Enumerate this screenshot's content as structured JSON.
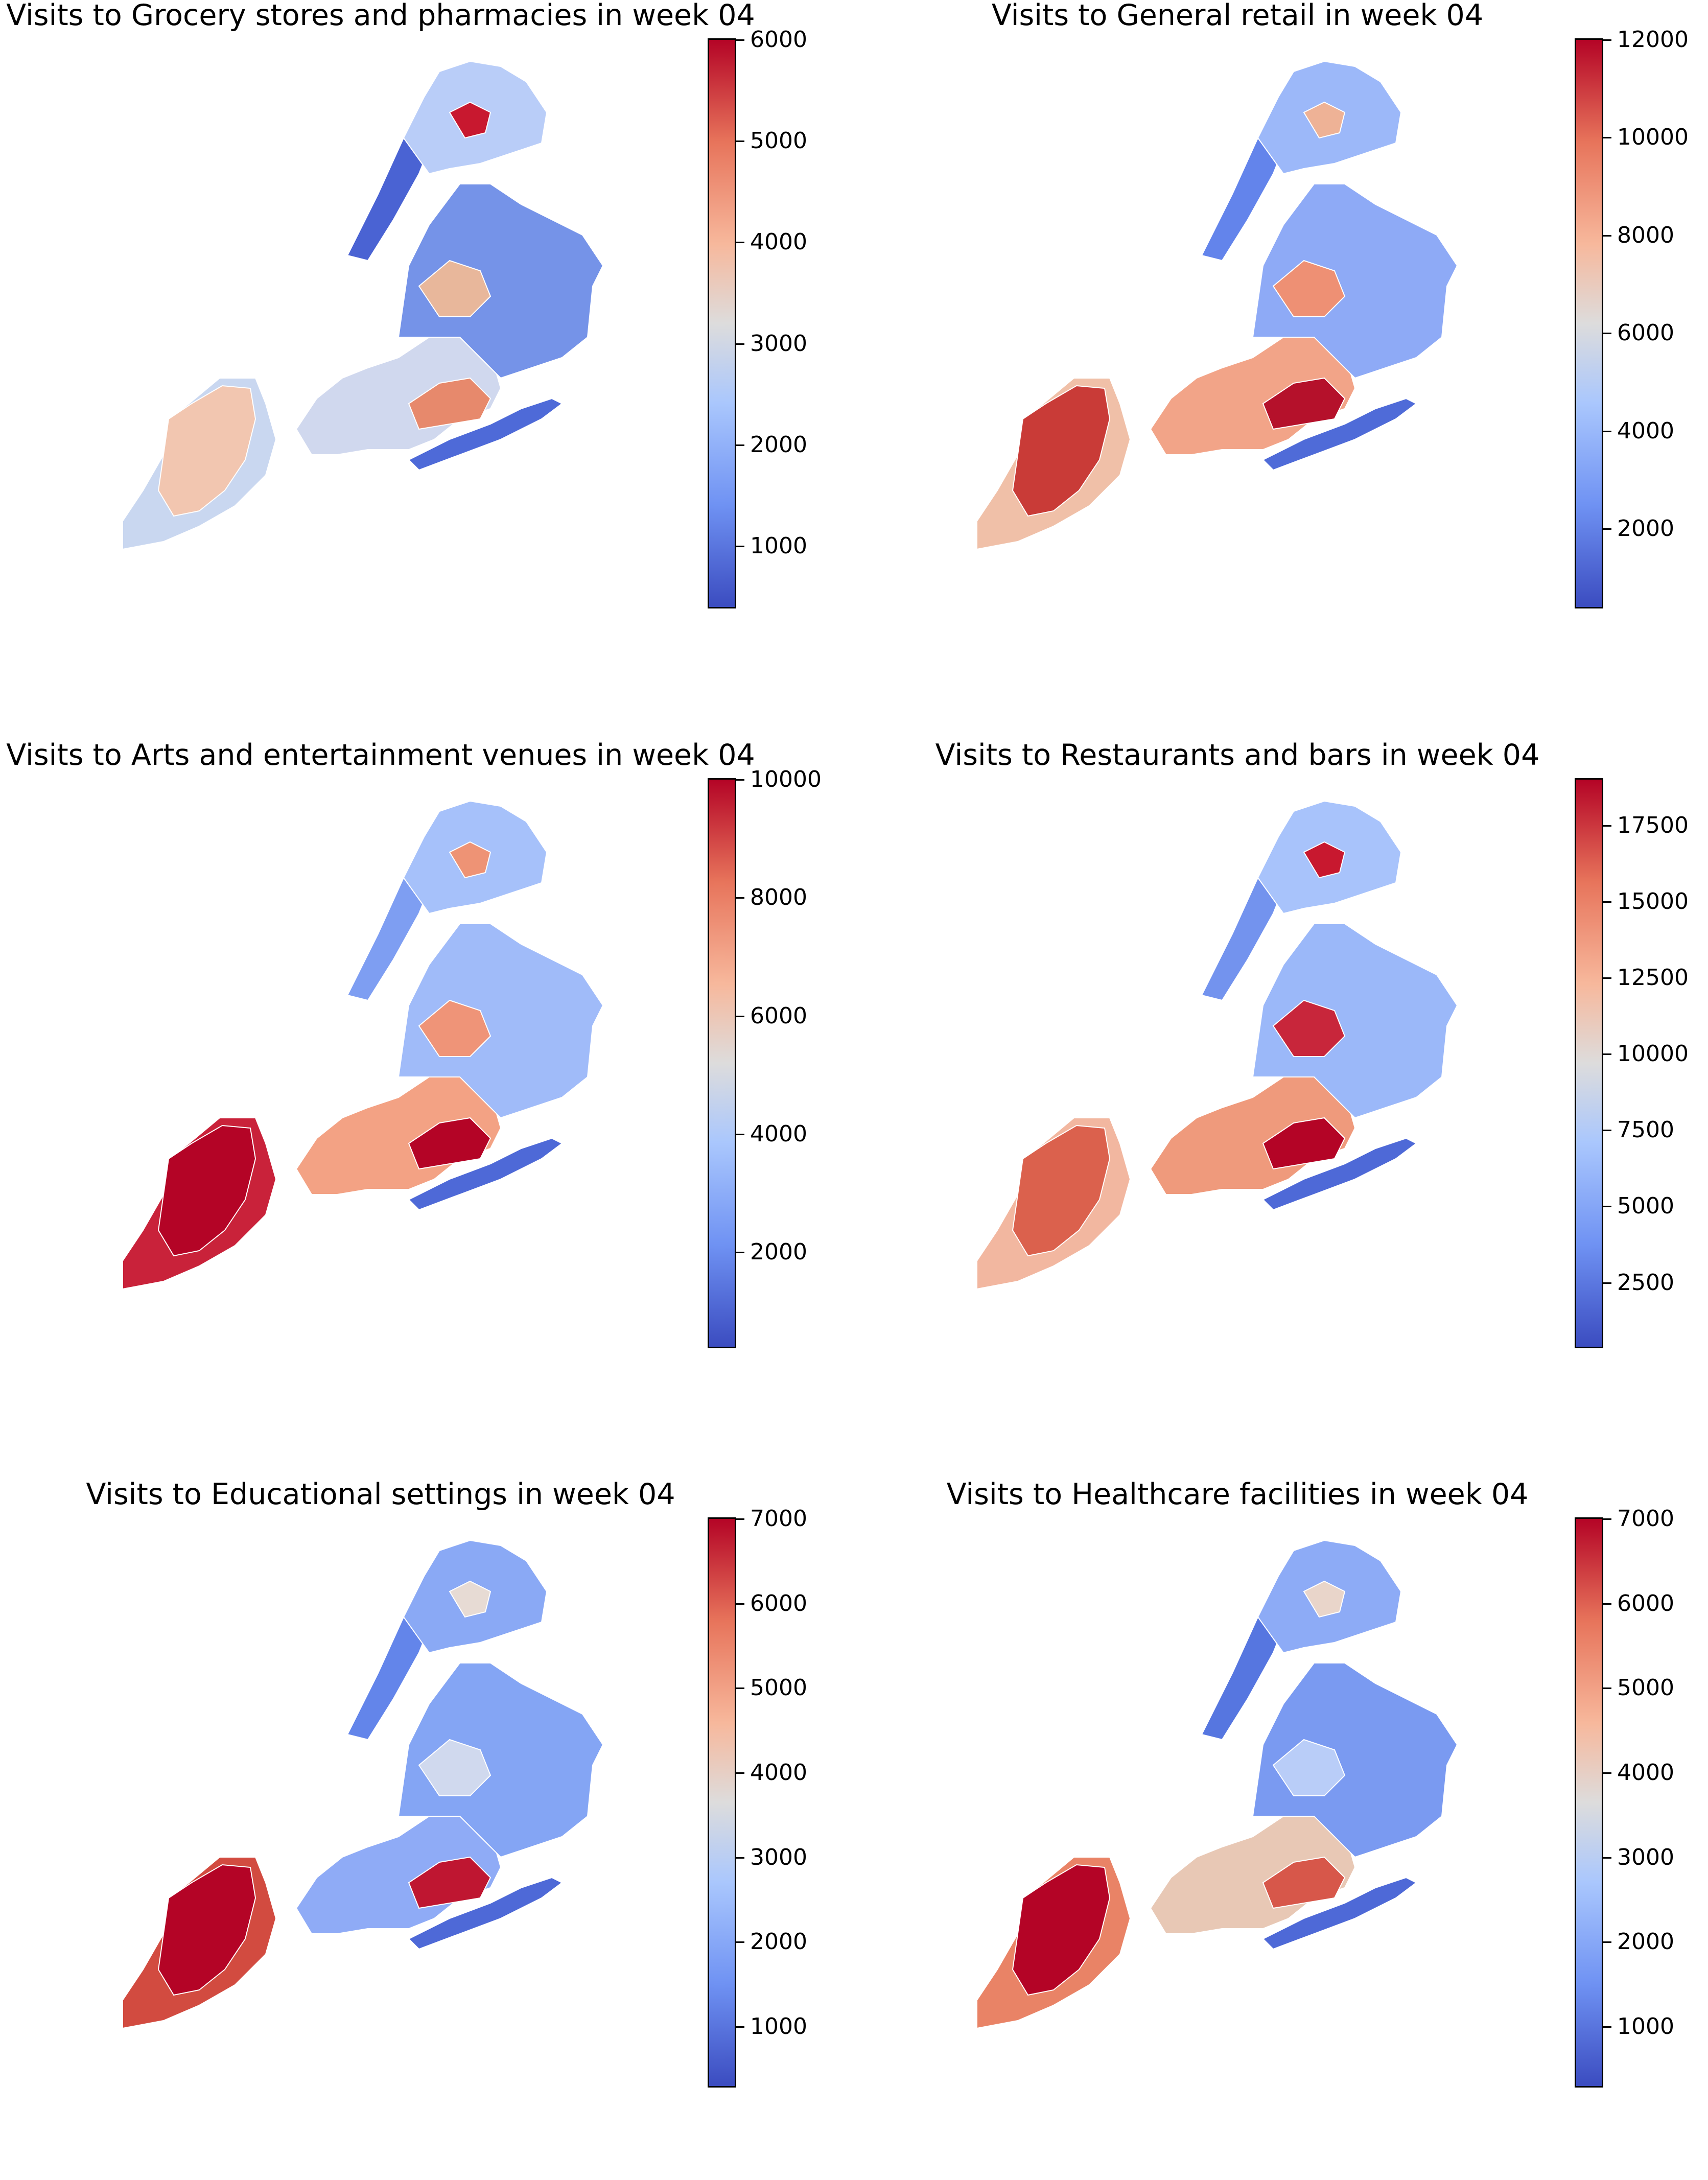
{
  "panels": [
    {
      "title": "Visits to Grocery stores and pharmacies in week 04",
      "ticks": [
        "6000",
        "5000",
        "4000",
        "3000",
        "2000",
        "1000"
      ],
      "chart_data": {
        "type": "choropleth",
        "colormap": "coolwarm",
        "vmin": 400,
        "vmax": 6000,
        "colorbar_ticks": [
          1000,
          2000,
          3000,
          4000,
          5000,
          6000
        ]
      }
    },
    {
      "title": "Visits to General retail in week 04",
      "ticks": [
        "12000",
        "10000",
        "8000",
        "6000",
        "4000",
        "2000"
      ],
      "chart_data": {
        "type": "choropleth",
        "colormap": "coolwarm",
        "vmin": 400,
        "vmax": 12000,
        "colorbar_ticks": [
          2000,
          4000,
          6000,
          8000,
          10000,
          12000
        ]
      }
    },
    {
      "title": "Visits to Arts and entertainment venues in week 04",
      "ticks": [
        "10000",
        "8000",
        "6000",
        "4000",
        "2000"
      ],
      "chart_data": {
        "type": "choropleth",
        "colormap": "coolwarm",
        "vmin": 400,
        "vmax": 10000,
        "colorbar_ticks": [
          2000,
          4000,
          6000,
          8000,
          10000
        ]
      }
    },
    {
      "title": "Visits to Restaurants and bars in week 04",
      "ticks": [
        "17500",
        "15000",
        "12500",
        "10000",
        "7500",
        "5000",
        "2500"
      ],
      "chart_data": {
        "type": "choropleth",
        "colormap": "coolwarm",
        "vmin": 400,
        "vmax": 19000,
        "colorbar_ticks": [
          2500,
          5000,
          7500,
          10000,
          12500,
          15000,
          17500
        ]
      }
    },
    {
      "title": "Visits to Educational settings in week 04",
      "ticks": [
        "7000",
        "6000",
        "5000",
        "4000",
        "3000",
        "2000",
        "1000"
      ],
      "chart_data": {
        "type": "choropleth",
        "colormap": "coolwarm",
        "vmin": 300,
        "vmax": 7000,
        "colorbar_ticks": [
          1000,
          2000,
          3000,
          4000,
          5000,
          6000,
          7000
        ]
      }
    },
    {
      "title": "Visits to Healthcare facilities in week 04",
      "ticks": [
        "7000",
        "6000",
        "5000",
        "4000",
        "3000",
        "2000",
        "1000"
      ],
      "chart_data": {
        "type": "choropleth",
        "colormap": "coolwarm",
        "vmin": 300,
        "vmax": 7000,
        "colorbar_ticks": [
          1000,
          2000,
          3000,
          4000,
          5000,
          6000,
          7000
        ]
      }
    }
  ],
  "map_colors": {
    "p0": {
      "si": "#c9d7f0",
      "sn": "#f2c6b0",
      "bk": "#d0d8ee",
      "bkS": "#e7896c",
      "qn": "#7593e8",
      "qnN": "#e8b79b",
      "mn": "#4a63d3",
      "bx": "#b9cdf8",
      "bxH": "#c8182f",
      "rk": "#4e6ad8"
    },
    "p1": {
      "si": "#f0c0a8",
      "sn": "#c93b37",
      "bk": "#f2a488",
      "bkS": "#b5112b",
      "qn": "#8eaaf6",
      "qnN": "#ee9074",
      "mn": "#6384eb",
      "bx": "#9cb8f9",
      "bxH": "#eeb296",
      "rk": "#4f6bd8"
    },
    "p2": {
      "si": "#c9223a",
      "sn": "#b40426",
      "bk": "#f3a284",
      "bkS": "#b40426",
      "qn": "#a0bbf9",
      "qnN": "#ef9478",
      "mn": "#7e9ef2",
      "bx": "#a6c1fa",
      "bxH": "#ee9375",
      "rk": "#4e69d7"
    },
    "p3": {
      "si": "#f2b7a0",
      "sn": "#db614d",
      "bk": "#ef9a7c",
      "bkS": "#b40426",
      "qn": "#9bb8f9",
      "qnN": "#c8263b",
      "mn": "#7393ee",
      "bx": "#a8c3fb",
      "bxH": "#c8182f",
      "rk": "#4e69d7"
    },
    "p4": {
      "si": "#d24b40",
      "sn": "#b40426",
      "bk": "#8fabf6",
      "bkS": "#bf1631",
      "qn": "#84a5f4",
      "qnN": "#d0d9ee",
      "mn": "#6385ea",
      "bx": "#8aa9f5",
      "bxH": "#e7dbd4",
      "rk": "#4e69d7"
    },
    "p5": {
      "si": "#e98366",
      "sn": "#b40426",
      "bk": "#e8c8b5",
      "bkS": "#d7574a",
      "qn": "#7a9af1",
      "qnN": "#b9cdf8",
      "mn": "#5676e0",
      "bx": "#8dabf6",
      "bxH": "#e9d5ca",
      "rk": "#4e69d7"
    }
  }
}
